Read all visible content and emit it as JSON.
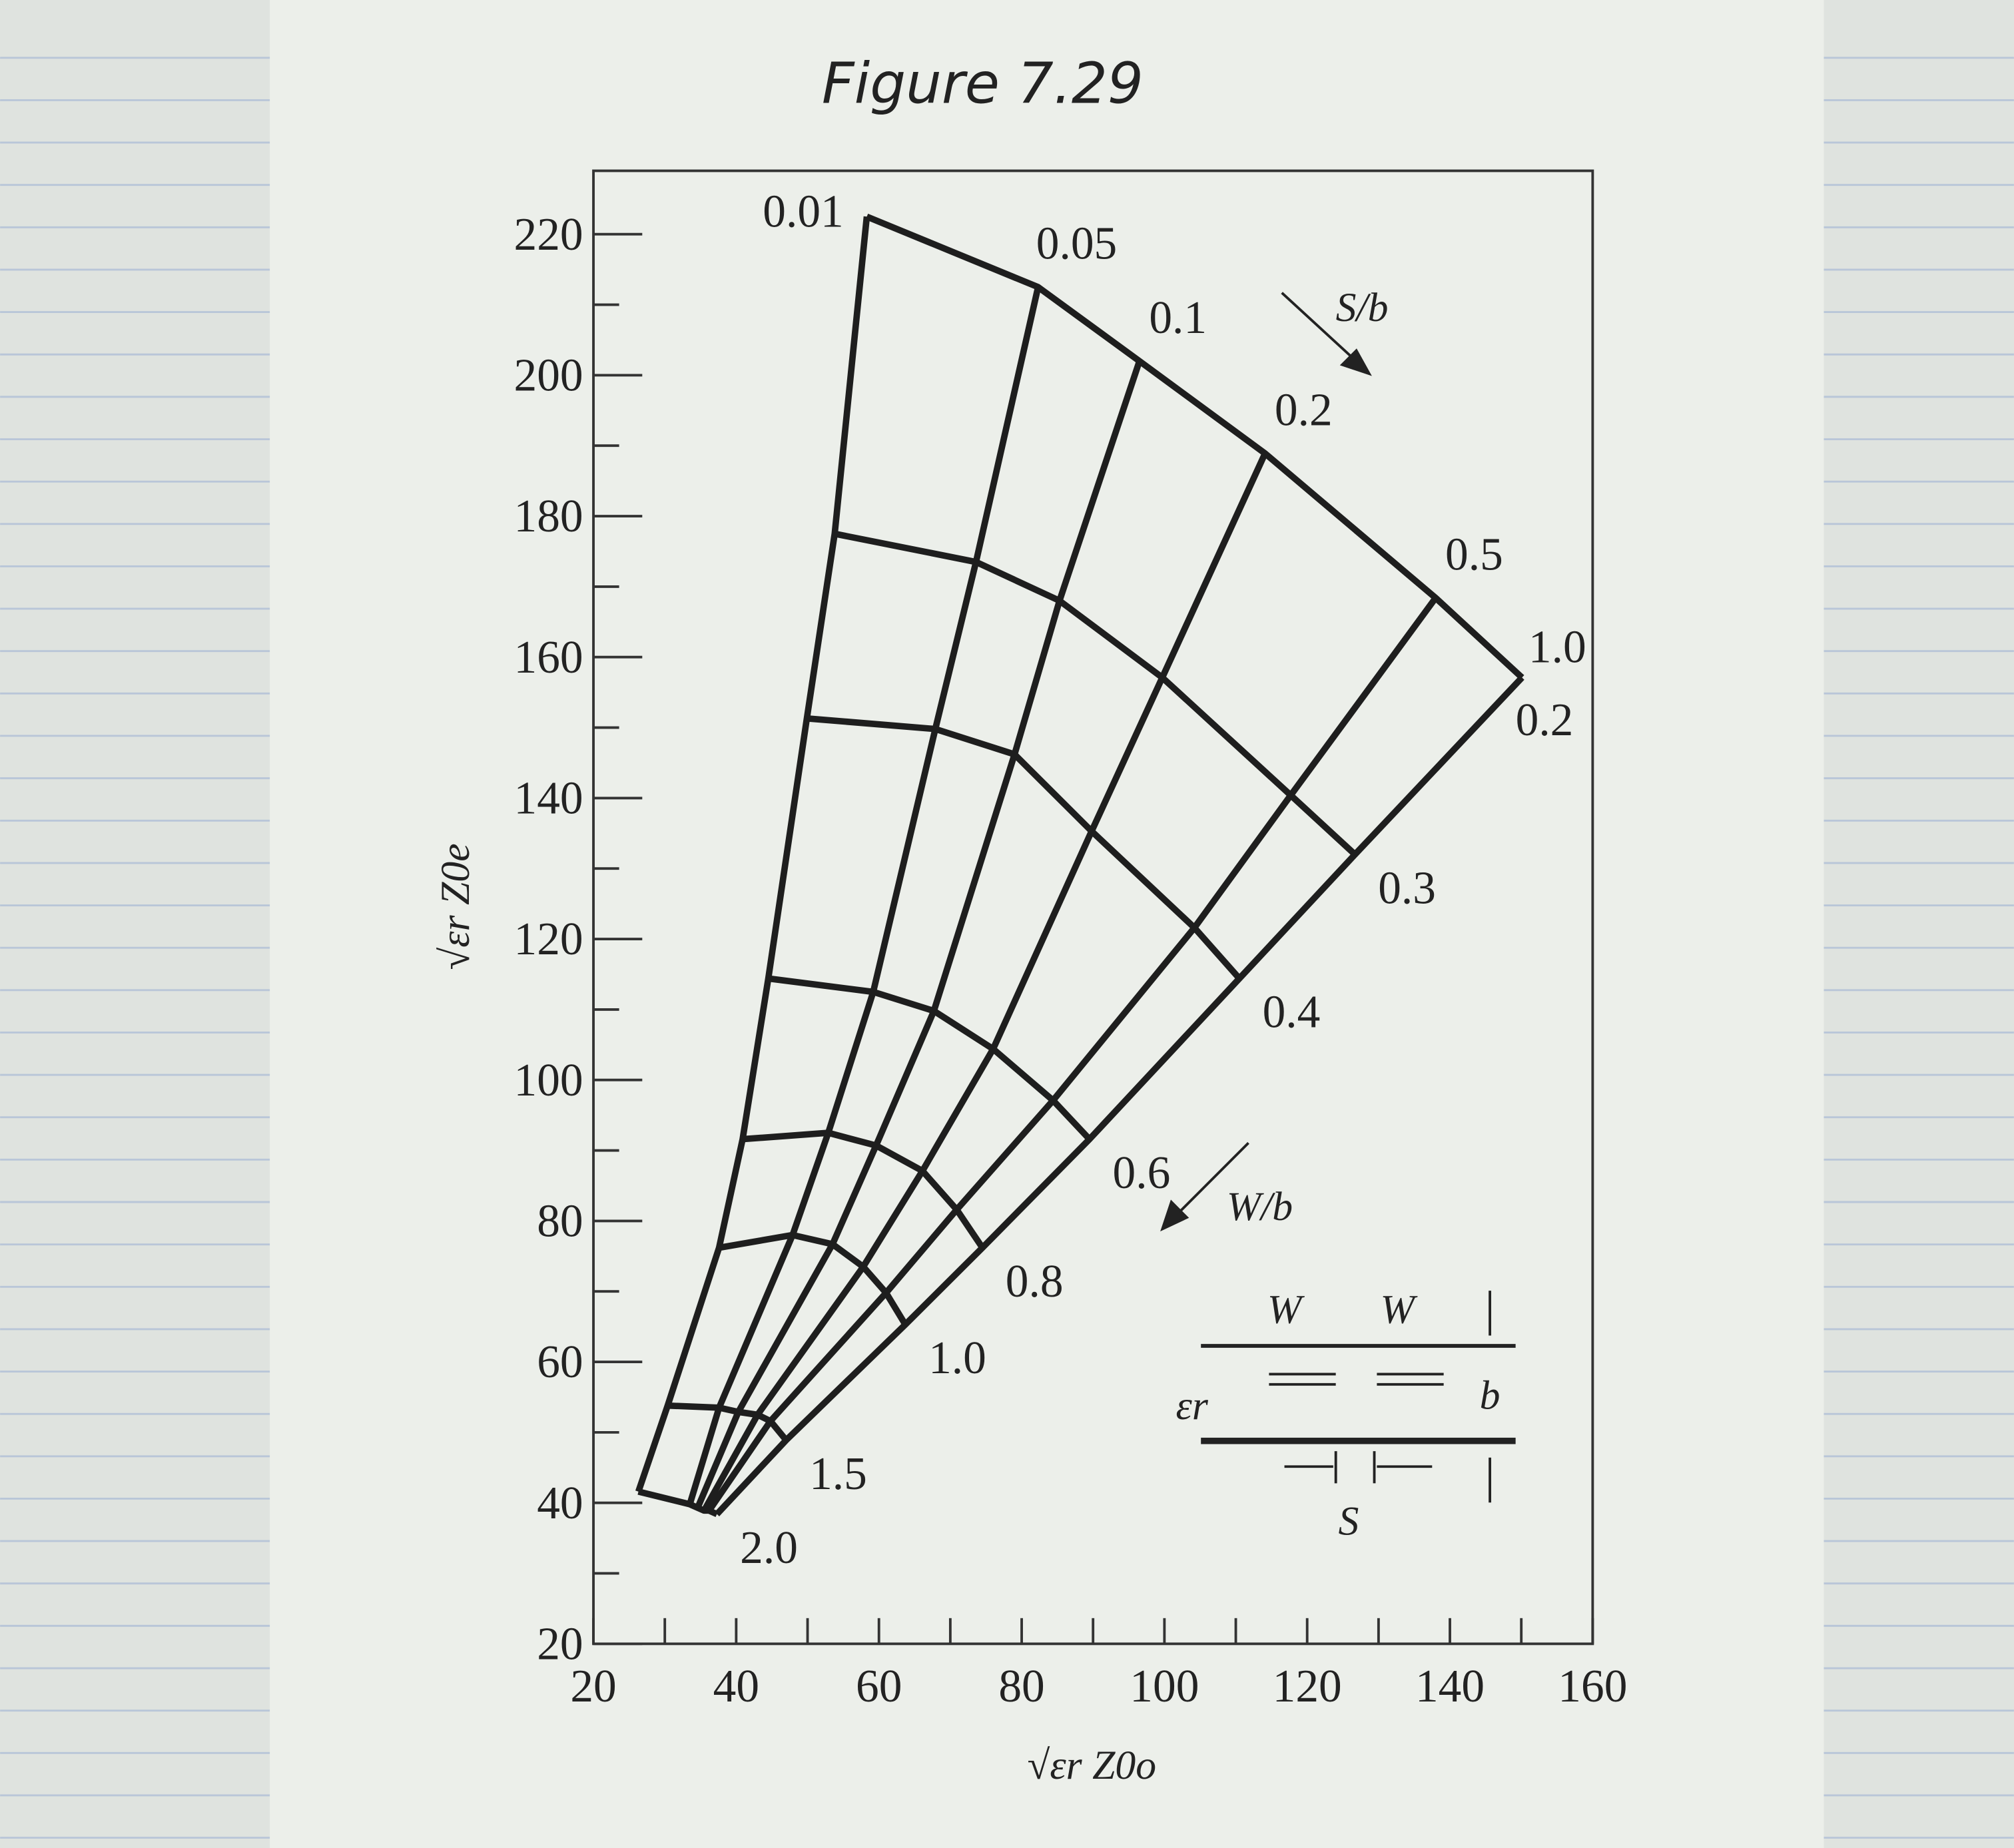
{
  "chart_data": {
    "type": "nomogram",
    "title": "Figure 7.29",
    "x_label": "√εr Z0o",
    "y_label": "√εr Z0e",
    "xlim": [
      20,
      160
    ],
    "ylim": [
      20,
      229
    ],
    "xticks": [
      20,
      40,
      60,
      80,
      100,
      120,
      140,
      160
    ],
    "yticks": [
      20,
      40,
      60,
      80,
      100,
      120,
      140,
      160,
      180,
      200,
      220
    ],
    "xminorticks": [
      30,
      50,
      70,
      90,
      110,
      130,
      150
    ],
    "yminorticks": [
      30,
      50,
      70,
      90,
      110,
      130,
      150,
      170,
      190,
      210
    ],
    "line_color": "#1e1e1e",
    "s_label": "S/b",
    "w_label": "W/b",
    "w_values": [
      "0.2",
      "0.3",
      "0.4",
      "0.6",
      "0.8",
      "1.0",
      "1.5",
      "2.0"
    ],
    "series": [
      {
        "name": "0.01",
        "x": [
          58.3,
          53.8,
          49.9,
          44.5,
          40.9,
          37.6,
          30.4,
          26.3
        ],
        "y": [
          222.5,
          177.5,
          151.3,
          114.4,
          91.6,
          76.2,
          53.8,
          41.6
        ]
      },
      {
        "name": "0.05",
        "x": [
          82.3,
          73.6,
          67.9,
          59.2,
          52.9,
          47.9,
          37.6,
          33.5
        ],
        "y": [
          212.5,
          173.5,
          149.8,
          112.5,
          92.5,
          78,
          53.5,
          39.8
        ]
      },
      {
        "name": "0.1",
        "x": [
          96.5,
          85.3,
          79,
          67.7,
          59.6,
          53.5,
          40.3,
          34.6
        ],
        "y": [
          202,
          168,
          146.2,
          109.8,
          90.7,
          76.7,
          52.9,
          39.3
        ]
      },
      {
        "name": "0.2",
        "x": [
          114.1,
          99.7,
          89.8,
          76,
          66.1,
          57.8,
          43,
          35.5
        ],
        "y": [
          188.9,
          157.1,
          135.3,
          104.4,
          87.1,
          73.5,
          52.5,
          38.9
        ]
      },
      {
        "name": "0.5",
        "x": [
          138,
          117.7,
          104.2,
          84.4,
          70.9,
          61,
          44.8,
          36.2
        ],
        "y": [
          168.4,
          140.4,
          121.6,
          97.1,
          81.6,
          69.8,
          51.6,
          38.9
        ]
      },
      {
        "name": "1.0",
        "x": [
          150.1,
          126.7,
          110.5,
          89.5,
          74.5,
          63.7,
          47,
          37.3
        ],
        "y": [
          157.1,
          132,
          114.4,
          91.6,
          76.2,
          65.3,
          48.9,
          38.4
        ]
      }
    ],
    "inset": {
      "w_left": "W",
      "w_right": "W",
      "b": "b",
      "er": "εr",
      "s": "S"
    }
  }
}
